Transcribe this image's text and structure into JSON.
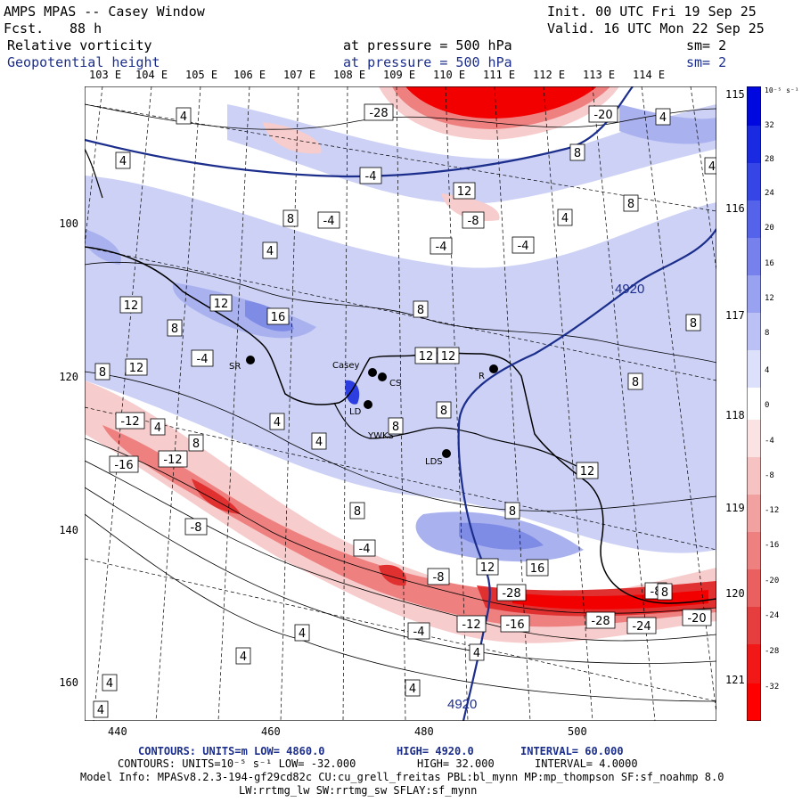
{
  "header": {
    "title": "AMPS MPAS -- Casey Window",
    "fcst_label": "Fcst.",
    "fcst_value": "88 h",
    "init": "Init. 00 UTC Fri 19 Sep 25",
    "valid": "Valid. 16 UTC Mon 22 Sep 25",
    "field1_name": "Relative vorticity",
    "field1_level": "at pressure =  500 hPa",
    "field1_sm": "sm= 2",
    "field2_name": "Geopotential height",
    "field2_level": "at pressure =  500 hPa",
    "field2_sm": "sm= 2"
  },
  "map": {
    "top_lon_labels": [
      "103 E",
      "104 E",
      "105 E",
      "106 E",
      "107 E",
      "108 E",
      "109 E",
      "110 E",
      "111 E",
      "112 E",
      "113 E",
      "114 E"
    ],
    "right_lon_labels": [
      "115 E",
      "116 E",
      "117 E",
      "118 E",
      "119 E",
      "120 E",
      "121 E"
    ],
    "y_axis_labels": [
      "100",
      "120",
      "140",
      "160"
    ],
    "x_axis_labels": [
      "440",
      "460",
      "480",
      "500"
    ],
    "stations": [
      {
        "name": "SR"
      },
      {
        "name": "Casey"
      },
      {
        "name": "CS"
      },
      {
        "name": "LD"
      },
      {
        "name": "YWKS"
      },
      {
        "name": "LDS"
      },
      {
        "name": "R"
      }
    ],
    "geopotential_labels": [
      "4920",
      "4920"
    ],
    "vorticity_labels": [
      "-28",
      "-20",
      "4",
      "4",
      "4",
      "8",
      "-4",
      "12",
      "8",
      "4",
      "4",
      "8",
      "-4",
      "-8",
      "-4",
      "-4",
      "4",
      "12",
      "16",
      "8",
      "12",
      "8",
      "8",
      "12",
      "-4",
      "12",
      "8",
      "-12",
      "4",
      "8",
      "8",
      "12",
      "8",
      "8",
      "4",
      "-16",
      "-12",
      "4",
      "12",
      "8",
      "8",
      "-8",
      "-4",
      "12",
      "16",
      "-8",
      "-28",
      "-28",
      "-24",
      "-20",
      "-8",
      "8",
      "-4",
      "-12",
      "-16",
      "4",
      "4",
      "4",
      "4",
      "4",
      "4"
    ],
    "colors": {
      "positive": "#2233dd",
      "negative": "#ee1111",
      "height_contour": "#1c2e8c",
      "map_lines": "#000000"
    }
  },
  "colorbar": {
    "units": "10⁻⁵ s⁻¹",
    "levels": [
      "32",
      "28",
      "24",
      "20",
      "16",
      "12",
      "8",
      "4",
      "0",
      "-4",
      "-8",
      "-12",
      "-16",
      "-20",
      "-24",
      "-28",
      "-32"
    ]
  },
  "footer": {
    "line1_label": "CONTOURS:  UNITS=m  LOW=  4860.0",
    "line1_high": "HIGH=  4920.0",
    "line1_interval": "INTERVAL=  60.000",
    "line2_label": "CONTOURS:  UNITS=10⁻⁵ s⁻¹  LOW= -32.000",
    "line2_high": "HIGH=  32.000",
    "line2_interval": "INTERVAL=  4.0000",
    "model_info": "Model Info: MPASv8.2.3-194-gf29cd82c CU:cu_grell_freitas PBL:bl_mynn MP:mp_thompson SF:sf_noahmp 8.0",
    "model_info2": "LW:rrtmg_lw SW:rrtmg_sw SFLAY:sf_mynn"
  }
}
